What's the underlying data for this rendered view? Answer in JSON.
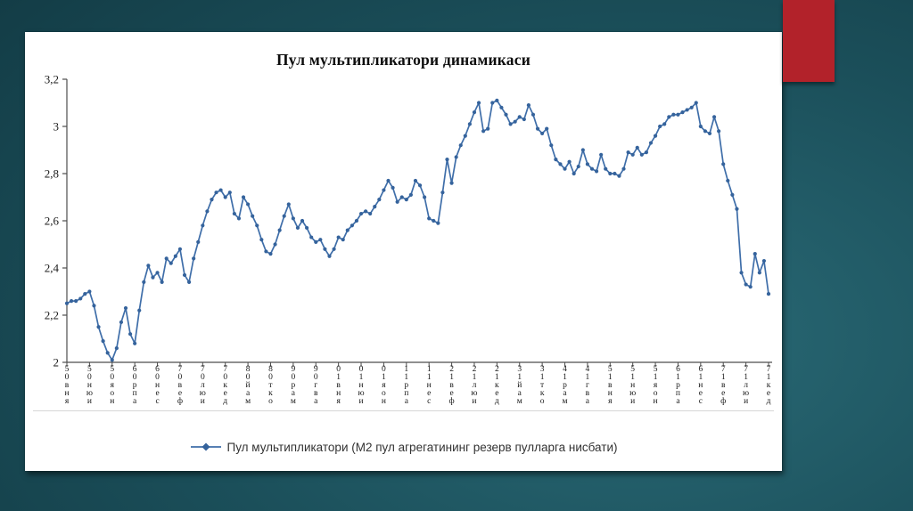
{
  "slide": {
    "accent_color": "#b2222a",
    "panel_color": "#ffffff",
    "background": {
      "dark": "#0f333c",
      "mid": "#1b4f5a",
      "light": "#2a6b77"
    }
  },
  "chart_data": {
    "type": "line",
    "title": "Пул мультипликатори динамикаси",
    "legend_label": "Пул мультипликатори (М2 пул агрегатининг резерв пулларга нисбати)",
    "line_color": "#3f6ea9",
    "marker_color": "#35639c",
    "axis_color": "#4d4d4d",
    "grid": "off",
    "legend_position": "bottom-center",
    "xlabel": "",
    "ylabel": "",
    "ylim": [
      2.0,
      3.2
    ],
    "y_ticks": [
      {
        "label": "3,2",
        "value": 3.2
      },
      {
        "label": "3",
        "value": 3.0
      },
      {
        "label": "2,8",
        "value": 2.8
      },
      {
        "label": "2,6",
        "value": 2.6
      },
      {
        "label": "2,4",
        "value": 2.4
      },
      {
        "label": "2,2",
        "value": 2.2
      },
      {
        "label": "2",
        "value": 2.0
      }
    ],
    "x_ticks": {
      "every": 5,
      "labels": [
        "янв05",
        "июн05",
        "ноя05",
        "апр06",
        "сен06",
        "фев07",
        "июл07",
        "дек07",
        "май08",
        "окт08",
        "мар09",
        "авг09",
        "янв10",
        "июн10",
        "ноя10",
        "апр11",
        "сен11",
        "фев12",
        "июл12",
        "дек12",
        "май13",
        "окт13",
        "мар14",
        "авг14",
        "янв15",
        "июн15",
        "ноя15",
        "апр16",
        "сен16",
        "фев17",
        "июл17",
        "дек17"
      ]
    },
    "x_range_note": "monthly points Jan 2005 - Dec 2017",
    "values": [
      2.25,
      2.26,
      2.26,
      2.27,
      2.29,
      2.3,
      2.24,
      2.15,
      2.09,
      2.04,
      2.01,
      2.06,
      2.17,
      2.23,
      2.12,
      2.08,
      2.22,
      2.34,
      2.41,
      2.36,
      2.38,
      2.34,
      2.44,
      2.42,
      2.45,
      2.48,
      2.37,
      2.34,
      2.44,
      2.51,
      2.58,
      2.64,
      2.69,
      2.72,
      2.73,
      2.7,
      2.72,
      2.63,
      2.61,
      2.7,
      2.67,
      2.62,
      2.58,
      2.52,
      2.47,
      2.46,
      2.5,
      2.56,
      2.62,
      2.67,
      2.61,
      2.57,
      2.6,
      2.57,
      2.53,
      2.51,
      2.52,
      2.48,
      2.45,
      2.48,
      2.53,
      2.52,
      2.56,
      2.58,
      2.6,
      2.63,
      2.64,
      2.63,
      2.66,
      2.69,
      2.73,
      2.77,
      2.74,
      2.68,
      2.7,
      2.69,
      2.71,
      2.77,
      2.75,
      2.7,
      2.61,
      2.6,
      2.59,
      2.72,
      2.86,
      2.76,
      2.87,
      2.92,
      2.96,
      3.01,
      3.06,
      3.1,
      2.98,
      2.99,
      3.1,
      3.11,
      3.08,
      3.05,
      3.01,
      3.02,
      3.04,
      3.03,
      3.09,
      3.05,
      2.99,
      2.97,
      2.99,
      2.92,
      2.86,
      2.84,
      2.82,
      2.85,
      2.8,
      2.83,
      2.9,
      2.84,
      2.82,
      2.81,
      2.88,
      2.82,
      2.8,
      2.8,
      2.79,
      2.82,
      2.89,
      2.88,
      2.91,
      2.88,
      2.89,
      2.93,
      2.96,
      3.0,
      3.01,
      3.04,
      3.05,
      3.05,
      3.06,
      3.07,
      3.08,
      3.1,
      3.0,
      2.98,
      2.97,
      3.04,
      2.98,
      2.84,
      2.77,
      2.71,
      2.65,
      2.38,
      2.33,
      2.32,
      2.46,
      2.38,
      2.43,
      2.29
    ]
  }
}
